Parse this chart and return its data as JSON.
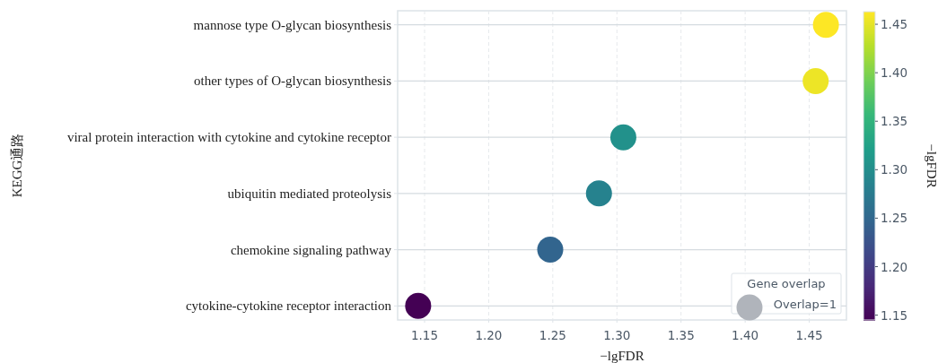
{
  "chart_data": {
    "type": "bubble",
    "orientation": "horizontal",
    "xlabel": "−lgFDR",
    "ylabel": "KEGG通路",
    "clabel": "−lgFDR",
    "legend_title": "Gene overlap",
    "categories": [
      "mannose type O-glycan biosynthesis",
      "other types of O-glycan biosynthesis",
      "viral protein interaction with cytokine and cytokine receptor",
      "ubiquitin mediated proteolysis",
      "chemokine signaling pathway",
      "cytokine-cytokine receptor interaction"
    ],
    "values": [
      1.463,
      1.455,
      1.305,
      1.286,
      1.248,
      1.145
    ],
    "cvalues": [
      1.463,
      1.455,
      1.305,
      1.286,
      1.248,
      1.145
    ],
    "sizes": [
      1,
      1,
      1,
      1,
      1,
      1
    ],
    "size_legend": [
      {
        "value": 1,
        "label": "Overlap=1"
      }
    ],
    "xlim": [
      1.129,
      1.479
    ],
    "xticks": [
      {
        "value": 1.15,
        "label": "1.15"
      },
      {
        "value": 1.2,
        "label": "1.20"
      },
      {
        "value": 1.25,
        "label": "1.25"
      },
      {
        "value": 1.3,
        "label": "1.30"
      },
      {
        "value": 1.35,
        "label": "1.35"
      },
      {
        "value": 1.4,
        "label": "1.40"
      },
      {
        "value": 1.45,
        "label": "1.45"
      }
    ],
    "clim": [
      1.145,
      1.463
    ],
    "cticks": [
      {
        "value": 1.15,
        "label": "1.15"
      },
      {
        "value": 1.2,
        "label": "1.20"
      },
      {
        "value": 1.25,
        "label": "1.25"
      },
      {
        "value": 1.3,
        "label": "1.30"
      },
      {
        "value": 1.35,
        "label": "1.35"
      },
      {
        "value": 1.4,
        "label": "1.40"
      },
      {
        "value": 1.45,
        "label": "1.45"
      }
    ],
    "grid": true
  }
}
